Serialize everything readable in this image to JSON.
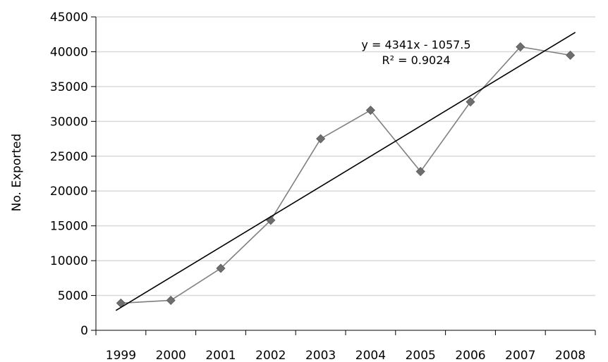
{
  "chart_data": {
    "type": "line",
    "title": "",
    "xlabel": "",
    "ylabel": "No. Exported",
    "categories": [
      "1999",
      "2000",
      "2001",
      "2002",
      "2003",
      "2004",
      "2005",
      "2006",
      "2007",
      "2008"
    ],
    "series": [
      {
        "values": [
          3900,
          4300,
          8900,
          15800,
          27500,
          31600,
          22800,
          32800,
          40700,
          39500
        ],
        "color": "#808080",
        "marker": "diamond",
        "marker_color": "#6e6e6e"
      }
    ],
    "trendline": {
      "type": "linear",
      "equation": "y = 4341x - 1057.5",
      "r_squared": "R² = 0.9024",
      "slope": 4341,
      "intercept": -1057.5,
      "color": "#000000"
    },
    "ylim": [
      0,
      45000
    ],
    "yticks": [
      "0",
      "5000",
      "10000",
      "15000",
      "20000",
      "25000",
      "30000",
      "35000",
      "40000",
      "45000"
    ],
    "ytick_values": [
      0,
      5000,
      10000,
      15000,
      20000,
      25000,
      30000,
      35000,
      40000,
      45000
    ],
    "grid": true,
    "grid_color": "#d9d9d9",
    "legend": "none"
  }
}
